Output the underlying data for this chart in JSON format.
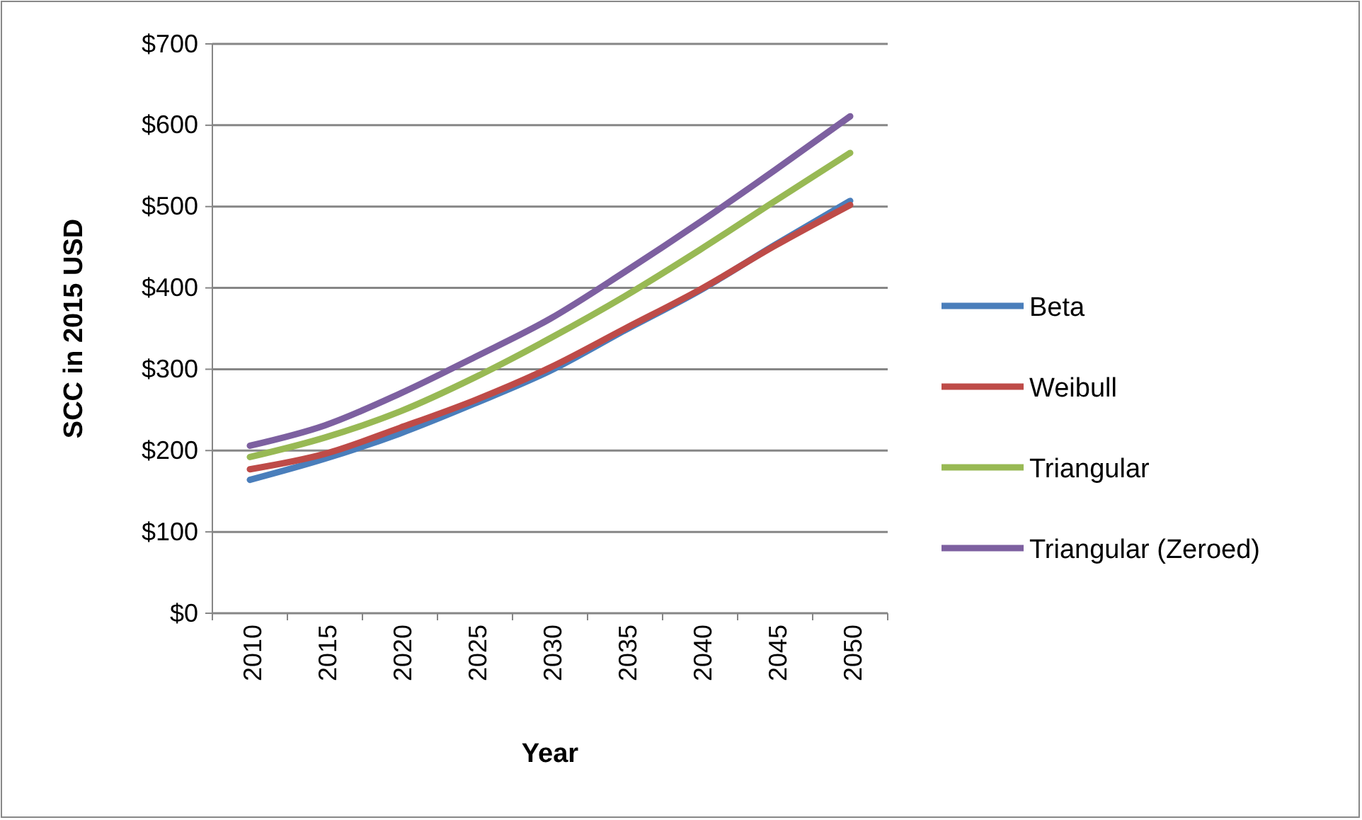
{
  "chart_data": {
    "type": "line",
    "xlabel": "Year",
    "ylabel": "SCC in 2015 USD",
    "categories": [
      "2010",
      "2015",
      "2020",
      "2025",
      "2030",
      "2035",
      "2040",
      "2045",
      "2050"
    ],
    "series": [
      {
        "name": "Beta",
        "color": "#4a7ebb",
        "values": [
          164,
          190,
          221,
          258,
          298,
          348,
          397,
          453,
          507
        ]
      },
      {
        "name": "Weibull",
        "color": "#be4b48",
        "values": [
          177,
          196,
          228,
          262,
          302,
          350,
          398,
          452,
          502
        ]
      },
      {
        "name": "Triangular",
        "color": "#98b954",
        "values": [
          192,
          216,
          248,
          290,
          338,
          390,
          447,
          507,
          566
        ]
      },
      {
        "name": "Triangular (Zeroed)",
        "color": "#7d60a0",
        "values": [
          206,
          231,
          270,
          315,
          362,
          420,
          481,
          545,
          611
        ]
      }
    ],
    "ylim": [
      0,
      700
    ],
    "yticks": [
      {
        "value": 0,
        "label": "$0"
      },
      {
        "value": 100,
        "label": "$100"
      },
      {
        "value": 200,
        "label": "$200"
      },
      {
        "value": 300,
        "label": "$300"
      },
      {
        "value": 400,
        "label": "$400"
      },
      {
        "value": 500,
        "label": "$500"
      },
      {
        "value": 600,
        "label": "$600"
      },
      {
        "value": 700,
        "label": "$700"
      }
    ],
    "grid": "y",
    "legend": "right",
    "marker": "none",
    "line_style": "solid"
  }
}
